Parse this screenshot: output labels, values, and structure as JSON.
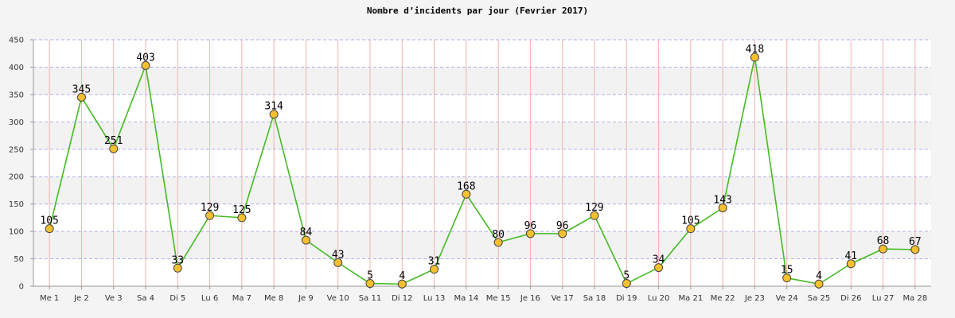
{
  "chart_data": {
    "type": "line",
    "title": "Nombre d’incidents par jour (Fevrier 2017)",
    "xlabel": "",
    "ylabel": "",
    "ylim": [
      0,
      450
    ],
    "yticks": [
      0,
      50,
      100,
      150,
      200,
      250,
      300,
      350,
      400,
      450
    ],
    "grid": true,
    "categories": [
      "Me 1",
      "Je 2",
      "Ve 3",
      "Sa 4",
      "Di 5",
      "Lu 6",
      "Ma 7",
      "Me 8",
      "Je 9",
      "Ve 10",
      "Sa 11",
      "Di 12",
      "Lu 13",
      "Ma 14",
      "Me 15",
      "Je 16",
      "Ve 17",
      "Sa 18",
      "Di 19",
      "Lu 20",
      "Ma 21",
      "Me 22",
      "Je 23",
      "Ve 24",
      "Sa 25",
      "Di 26",
      "Lu 27",
      "Ma 28"
    ],
    "series": [
      {
        "values": [
          105,
          345,
          251,
          403,
          33,
          129,
          125,
          314,
          84,
          43,
          5,
          4,
          31,
          168,
          80,
          96,
          96,
          129,
          5,
          34,
          105,
          143,
          418,
          15,
          4,
          41,
          68,
          67
        ],
        "line_color": "#44bb22",
        "marker_color": "#f5c030"
      }
    ]
  },
  "colors": {
    "background": "#f4f4f4",
    "band_light": "#ffffff",
    "band_dark": "#f2f2f2",
    "vertical_grid": "#f4b0b0",
    "horizontal_grid": "#b0b0ee"
  }
}
